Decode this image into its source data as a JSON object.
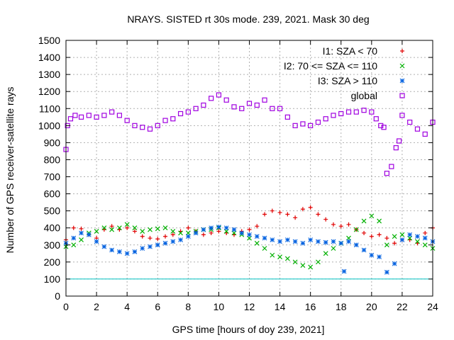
{
  "chart_data": {
    "type": "scatter",
    "title": "NRAYS. SISTED rt 30s mode. 239, 2021. Mask 30 deg",
    "xlabel": "GPS time [hours of doy 239, 2021]",
    "ylabel": "Number of GPS receiver-satellite rays",
    "xlim": [
      0,
      24
    ],
    "ylim": [
      0,
      1500
    ],
    "xticks": [
      0,
      2,
      4,
      6,
      8,
      10,
      12,
      14,
      16,
      18,
      20,
      22,
      24
    ],
    "yticks": [
      0,
      100,
      200,
      300,
      400,
      500,
      600,
      700,
      800,
      900,
      1000,
      1100,
      1200,
      1300,
      1400,
      1500
    ],
    "grid": true,
    "legend_position": "top-right",
    "reference_line": {
      "y": 100,
      "color": "#00c0c0"
    },
    "series": [
      {
        "name": "I1: SZA < 70",
        "marker": "+",
        "color": "#e00000",
        "x": [
          0,
          0.5,
          1,
          1.5,
          2,
          2.5,
          3,
          3.5,
          4,
          4.5,
          5,
          5.5,
          6,
          6.5,
          7,
          7.5,
          8,
          8.5,
          9,
          9.5,
          10,
          10.5,
          11,
          11.5,
          12,
          12.5,
          13,
          13.5,
          14,
          14.5,
          15,
          15.5,
          16,
          16.5,
          17,
          17.5,
          18,
          18.5,
          19,
          19.5,
          20,
          20.5,
          21,
          21.5,
          22,
          22.5,
          23,
          23.5,
          24
        ],
        "y": [
          330,
          400,
          395,
          360,
          340,
          390,
          410,
          390,
          400,
          380,
          350,
          340,
          335,
          350,
          360,
          380,
          400,
          380,
          360,
          370,
          380,
          370,
          360,
          380,
          390,
          410,
          480,
          500,
          490,
          480,
          460,
          510,
          520,
          480,
          450,
          420,
          410,
          420,
          390,
          370,
          350,
          360,
          340,
          310,
          330,
          330,
          310,
          370,
          400
        ]
      },
      {
        "name": "I2: 70 <= SZA <= 110",
        "marker": "x",
        "color": "#00b000",
        "x": [
          0,
          0.5,
          1,
          1.5,
          2,
          2.5,
          3,
          3.5,
          4,
          4.5,
          5,
          5.5,
          6,
          6.5,
          7,
          7.5,
          8,
          8.5,
          9,
          9.5,
          10,
          10.5,
          11,
          11.5,
          12,
          12.5,
          13,
          13.5,
          14,
          14.5,
          15,
          15.5,
          16,
          16.5,
          17,
          17.5,
          18,
          18.5,
          19,
          19.5,
          20,
          20.5,
          21,
          21.5,
          22,
          22.5,
          23,
          23.5,
          24
        ],
        "y": [
          290,
          300,
          330,
          370,
          380,
          400,
          390,
          400,
          420,
          400,
          380,
          390,
          395,
          400,
          380,
          370,
          370,
          380,
          390,
          390,
          400,
          380,
          370,
          360,
          340,
          310,
          280,
          240,
          230,
          220,
          200,
          180,
          170,
          200,
          250,
          280,
          310,
          340,
          390,
          440,
          470,
          440,
          300,
          350,
          360,
          340,
          320,
          300,
          280
        ]
      },
      {
        "name": "I3: SZA > 110",
        "marker": "*",
        "color": "#0060e0",
        "x": [
          0,
          0.5,
          1,
          1.5,
          2,
          2.5,
          3,
          3.5,
          4,
          4.5,
          5,
          5.5,
          6,
          6.5,
          7,
          7.5,
          8,
          8.5,
          9,
          9.5,
          10,
          10.5,
          11,
          11.5,
          12,
          12.5,
          13,
          13.5,
          14,
          14.5,
          15,
          15.5,
          16,
          16.5,
          17,
          17.5,
          18,
          18.2,
          18.5,
          19,
          19.5,
          20,
          20.5,
          21,
          21.5,
          22,
          22.5,
          23,
          23.5,
          24
        ],
        "y": [
          310,
          340,
          370,
          360,
          320,
          290,
          270,
          260,
          250,
          260,
          280,
          290,
          300,
          310,
          320,
          330,
          350,
          370,
          390,
          400,
          405,
          400,
          390,
          370,
          360,
          350,
          340,
          330,
          320,
          330,
          320,
          310,
          330,
          320,
          315,
          320,
          310,
          145,
          320,
          300,
          270,
          240,
          230,
          140,
          190,
          330,
          360,
          350,
          340,
          320
        ]
      },
      {
        "name": "global",
        "marker": "square",
        "color": "#a000e0",
        "x": [
          0,
          0.1,
          0.3,
          0.6,
          1,
          1.5,
          2,
          2.5,
          3,
          3.5,
          4,
          4.5,
          5,
          5.5,
          6,
          6.5,
          7,
          7.5,
          8,
          8.5,
          9,
          9.5,
          10,
          10.5,
          11,
          11.5,
          12,
          12.5,
          13,
          13.5,
          14,
          14.5,
          15,
          15.5,
          16,
          16.5,
          17,
          17.5,
          18,
          18.5,
          19,
          19.5,
          20,
          20.3,
          20.6,
          20.8,
          21,
          21.3,
          21.6,
          21.8,
          22,
          22.5,
          23,
          23.5,
          24
        ],
        "y": [
          860,
          1000,
          1040,
          1060,
          1050,
          1060,
          1050,
          1060,
          1080,
          1060,
          1030,
          1000,
          990,
          980,
          1000,
          1030,
          1040,
          1070,
          1080,
          1100,
          1120,
          1160,
          1180,
          1150,
          1110,
          1100,
          1130,
          1120,
          1150,
          1100,
          1100,
          1050,
          1000,
          1010,
          1000,
          1020,
          1040,
          1060,
          1070,
          1080,
          1080,
          1090,
          1080,
          1040,
          1000,
          990,
          720,
          760,
          870,
          910,
          1060,
          1020,
          980,
          950,
          1020
        ]
      }
    ]
  }
}
